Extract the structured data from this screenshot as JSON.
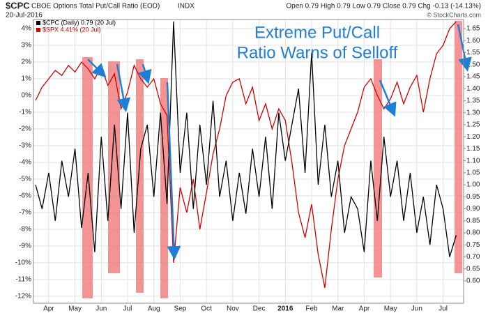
{
  "chart_data": {
    "type": "line",
    "symbol": "$CPC",
    "title": "CBOE Options Total Put/Call Ratio (EOD)",
    "exchange": "INDX",
    "date": "20-Jul-2016",
    "quote": "Open 0.79  High 0.79  Low 0.79  Close 0.79  Chg -0.13 (-14.13%)",
    "credit": "© StockCharts.com",
    "annotation": [
      "Extreme Put/Call",
      "Ratio Warns of Selloff"
    ],
    "grid": true,
    "xlim": [
      2.42,
      18.78
    ],
    "ylim": [
      -12.42,
      4.54
    ],
    "y2lim": [
      0.507,
      1.688
    ],
    "xticks": [
      {
        "value": 3,
        "label": "Apr"
      },
      {
        "value": 4,
        "label": "May"
      },
      {
        "value": 5,
        "label": "Jun"
      },
      {
        "value": 6,
        "label": "Jul"
      },
      {
        "value": 7,
        "label": "Aug"
      },
      {
        "value": 8,
        "label": "Sep"
      },
      {
        "value": 9,
        "label": "Oct"
      },
      {
        "value": 10,
        "label": "Nov"
      },
      {
        "value": 11,
        "label": "Dec"
      },
      {
        "value": 12,
        "label": "2016"
      },
      {
        "value": 13,
        "label": "Feb"
      },
      {
        "value": 14,
        "label": "Mar"
      },
      {
        "value": 15,
        "label": "Apr"
      },
      {
        "value": 16,
        "label": "May"
      },
      {
        "value": 17,
        "label": "Jun"
      },
      {
        "value": 18,
        "label": "Jul"
      }
    ],
    "yticks": [
      {
        "value": 4,
        "label": "4%"
      },
      {
        "value": 3,
        "label": "3%"
      },
      {
        "value": 2,
        "label": "2%"
      },
      {
        "value": 1,
        "label": "1%"
      },
      {
        "value": 0,
        "label": "0%"
      },
      {
        "value": -1,
        "label": "-1%"
      },
      {
        "value": -2,
        "label": "-2%"
      },
      {
        "value": -3,
        "label": "-3%"
      },
      {
        "value": -4,
        "label": "-4%"
      },
      {
        "value": -5,
        "label": "-5%"
      },
      {
        "value": -6,
        "label": "-6%"
      },
      {
        "value": -7,
        "label": "-7%"
      },
      {
        "value": -8,
        "label": "-8%"
      },
      {
        "value": -9,
        "label": "-9%"
      },
      {
        "value": -10,
        "label": "-10%"
      },
      {
        "value": -11,
        "label": "-11%"
      },
      {
        "value": -12,
        "label": "-12%"
      }
    ],
    "y2ticks": [
      1.65,
      {
        "value": 1.6,
        "label": "1.60"
      },
      1.55,
      {
        "value": 1.5,
        "label": "1.50"
      },
      1.45,
      {
        "value": 1.4,
        "label": "1.40"
      },
      1.35,
      {
        "value": 1.3,
        "label": "1.30"
      },
      1.25,
      {
        "value": 1.2,
        "label": "1.20"
      },
      1.15,
      {
        "value": 1.1,
        "label": "1.10"
      },
      1.05,
      {
        "value": 1.0,
        "label": "1.00"
      },
      0.95,
      {
        "value": 0.9,
        "label": "0.90"
      },
      0.85,
      {
        "value": 0.8,
        "label": "0.80"
      },
      0.75,
      {
        "value": 0.7,
        "label": "0.70"
      },
      0.65,
      {
        "value": 0.6,
        "label": "0.60"
      }
    ],
    "x": [
      2.5,
      2.75,
      3,
      3.25,
      3.5,
      3.75,
      4,
      4.25,
      4.5,
      4.75,
      5,
      5.25,
      5.5,
      5.75,
      6,
      6.25,
      6.5,
      6.75,
      7,
      7.25,
      7.5,
      7.75,
      8,
      8.25,
      8.5,
      8.75,
      9,
      9.25,
      9.5,
      9.75,
      10,
      10.25,
      10.5,
      10.75,
      11,
      11.25,
      11.5,
      11.75,
      12,
      12.25,
      12.5,
      12.75,
      13,
      13.25,
      13.5,
      13.75,
      14,
      14.25,
      14.5,
      14.75,
      15,
      15.25,
      15.5,
      15.75,
      16,
      16.25,
      16.5,
      16.75,
      17,
      17.25,
      17.5,
      17.75,
      18,
      18.25,
      18.5
    ],
    "series": [
      {
        "name": "$SPX 4.41% (20 Jul)",
        "color": "#d00000",
        "axis": "y",
        "values": [
          -0.3,
          0.5,
          1.0,
          1.5,
          1.2,
          1.8,
          1.4,
          2.0,
          1.6,
          1.0,
          1.7,
          0.6,
          1.3,
          -0.8,
          0.2,
          1.8,
          1.0,
          0.5,
          1.0,
          -0.5,
          -1.2,
          -10.0,
          -5.5,
          -7.0,
          -5.0,
          -8.0,
          -5.8,
          -3.5,
          -2.0,
          0.0,
          0.8,
          1.0,
          -0.5,
          0.5,
          -1.5,
          -0.5,
          -2.0,
          -0.8,
          -1.5,
          -4.0,
          -7.0,
          -8.5,
          -6.5,
          -9.5,
          -11.5,
          -8.0,
          -5.0,
          -3.0,
          -2.0,
          -1.0,
          0.5,
          1.0,
          0.0,
          -0.8,
          -0.2,
          0.8,
          -0.5,
          0.5,
          1.2,
          -1.0,
          1.0,
          2.5,
          3.0,
          4.0,
          4.41
        ]
      },
      {
        "name": "$CPC (Daily) 0.79 (20 Jul)",
        "color": "#000000",
        "axis": "y2",
        "values": [
          1.0,
          0.9,
          1.05,
          0.85,
          1.1,
          0.95,
          1.15,
          0.82,
          1.05,
          0.72,
          1.2,
          0.85,
          1.25,
          0.9,
          1.3,
          0.8,
          1.15,
          1.25,
          0.95,
          1.3,
          0.92,
          1.68,
          1.05,
          1.3,
          0.9,
          1.25,
          1.0,
          1.35,
          0.95,
          1.1,
          0.85,
          1.05,
          0.88,
          1.15,
          0.95,
          1.2,
          0.9,
          1.3,
          1.1,
          1.25,
          1.4,
          1.05,
          1.55,
          1.0,
          1.25,
          0.95,
          1.1,
          0.8,
          0.95,
          0.9,
          0.72,
          1.1,
          0.85,
          1.2,
          0.95,
          1.1,
          0.85,
          1.05,
          0.8,
          0.95,
          0.75,
          1.0,
          0.9,
          0.7,
          0.79
        ]
      }
    ]
  }
}
